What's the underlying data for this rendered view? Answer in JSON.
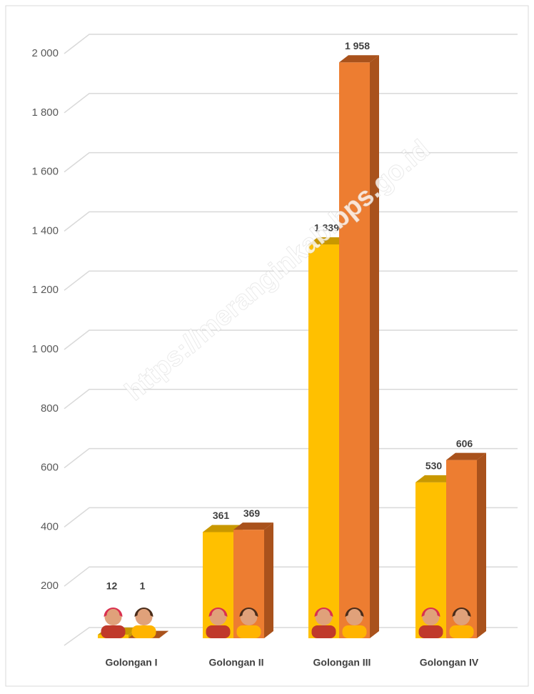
{
  "chart_data": {
    "type": "bar3d",
    "watermark": "https://meranginkab.bps.go.id",
    "categories": [
      "Golongan I",
      "Golongan II",
      "Golongan III",
      "Golongan IV"
    ],
    "series": [
      {
        "color": "#ffc000",
        "side": "#c99800",
        "values": [
          12,
          361,
          1339,
          530
        ],
        "value_labels": [
          "12",
          "361",
          "1 339",
          "530"
        ]
      },
      {
        "color": "#ed7d31",
        "side": "#a9521c",
        "values": [
          1,
          369,
          1958,
          606
        ],
        "value_labels": [
          "1",
          "369",
          "1 958",
          "606"
        ]
      }
    ],
    "ylim": [
      0,
      2000
    ],
    "yticks": [
      200,
      400,
      600,
      800,
      {
        "value": 1000,
        "label": "1 000"
      },
      {
        "value": 1200,
        "label": "1 200"
      },
      {
        "value": 1400,
        "label": "1 400"
      },
      {
        "value": 1600,
        "label": "1 600"
      },
      {
        "value": 1800,
        "label": "1 800"
      },
      {
        "value": 2000,
        "label": "2 000"
      }
    ],
    "grid": true
  }
}
